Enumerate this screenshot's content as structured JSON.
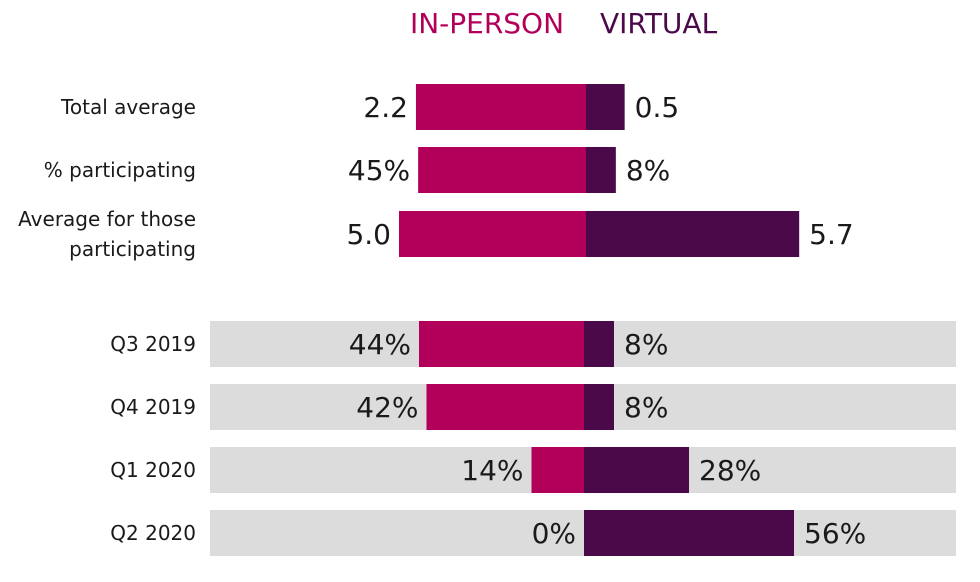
{
  "colors": {
    "in_person": "#b2005a",
    "virtual": "#4a0a4a",
    "band": "#dcdcdc"
  },
  "chart_data": [
    {
      "type": "bar",
      "orientation": "horizontal-diverging",
      "legend": {
        "in_person": "IN-PERSON",
        "virtual": "VIRTUAL"
      },
      "categories": [
        "Total average",
        "% participating",
        "Average for those participating"
      ],
      "category_lines": [
        [
          "Total average"
        ],
        [
          "% participating"
        ],
        [
          "Average for those",
          "participating"
        ]
      ],
      "series": [
        {
          "name": "IN-PERSON",
          "values": [
            2.2,
            45,
            5.0
          ],
          "labels": [
            "2.2",
            "45%",
            "5.0"
          ]
        },
        {
          "name": "VIRTUAL",
          "values": [
            0.5,
            8,
            5.7
          ],
          "labels": [
            "0.5",
            "8%",
            "5.7"
          ]
        }
      ]
    },
    {
      "type": "bar",
      "orientation": "horizontal-diverging",
      "categories": [
        "Q3 2019",
        "Q4 2019",
        "Q1 2020",
        "Q2 2020"
      ],
      "category_lines": [
        [
          "Q3 2019"
        ],
        [
          "Q4 2019"
        ],
        [
          "Q1 2020"
        ],
        [
          "Q2 2020"
        ]
      ],
      "series": [
        {
          "name": "IN-PERSON",
          "values": [
            44,
            42,
            14,
            0
          ],
          "labels": [
            "44%",
            "42%",
            "14%",
            "0%"
          ]
        },
        {
          "name": "VIRTUAL",
          "values": [
            8,
            8,
            28,
            56
          ],
          "labels": [
            "8%",
            "8%",
            "28%",
            "56%"
          ]
        }
      ],
      "background_bands": true
    }
  ]
}
